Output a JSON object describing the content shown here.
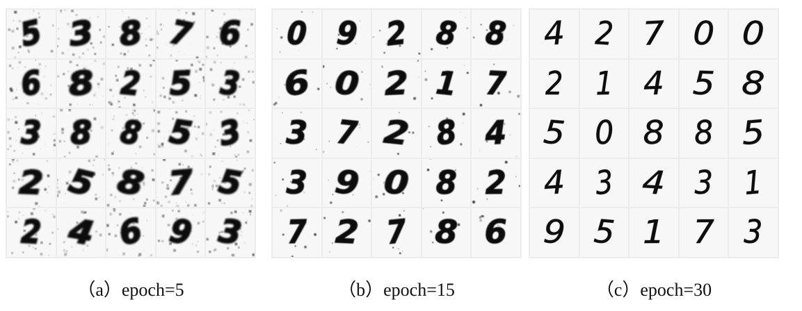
{
  "panels": [
    {
      "id": "a",
      "caption": "（a）epoch=5",
      "quality": "noisy",
      "digits": [
        [
          "5",
          "3",
          "8",
          "7",
          "6"
        ],
        [
          "6",
          "8",
          "2",
          "5",
          "3"
        ],
        [
          "3",
          "8",
          "8",
          "5",
          "3"
        ],
        [
          "2",
          "5",
          "8",
          "7",
          "5"
        ],
        [
          "2",
          "4",
          "6",
          "9",
          "3"
        ]
      ]
    },
    {
      "id": "b",
      "caption": "（b）epoch=15",
      "quality": "medium",
      "digits": [
        [
          "0",
          "9",
          "2",
          "8",
          "8"
        ],
        [
          "6",
          "0",
          "2",
          "1",
          "7"
        ],
        [
          "3",
          "7",
          "2",
          "8",
          "4"
        ],
        [
          "3",
          "9",
          "0",
          "8",
          "2"
        ],
        [
          "7",
          "2",
          "7",
          "8",
          "6"
        ]
      ]
    },
    {
      "id": "c",
      "caption": "（c）epoch=30",
      "quality": "clean",
      "digits": [
        [
          "4",
          "2",
          "7",
          "0",
          "0"
        ],
        [
          "2",
          "1",
          "4",
          "5",
          "8"
        ],
        [
          "5",
          "0",
          "8",
          "8",
          "5"
        ],
        [
          "4",
          "3",
          "4",
          "3",
          "1"
        ],
        [
          "9",
          "5",
          "1",
          "7",
          "3"
        ]
      ]
    }
  ],
  "colors": {
    "ink": "#111111",
    "cell_bg": "#f7f7f7",
    "grid_line": "#ececec"
  }
}
